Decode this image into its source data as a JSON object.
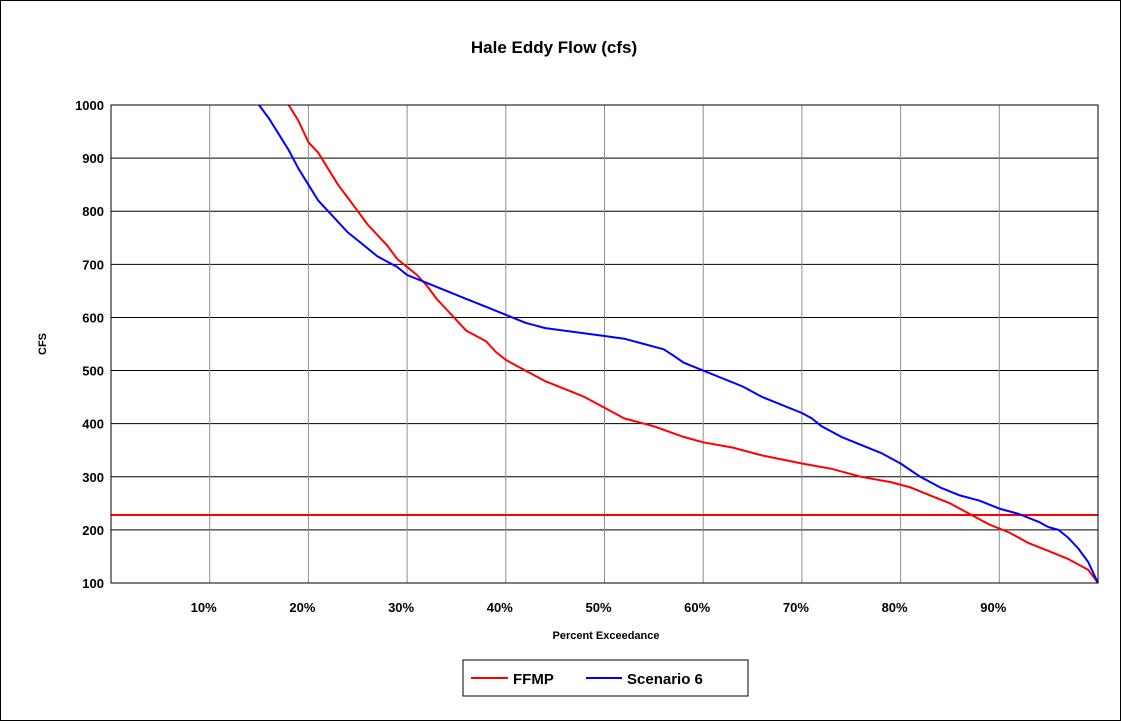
{
  "chart_data": {
    "type": "line",
    "title": "Hale Eddy Flow (cfs)",
    "xlabel": "Percent Exceedance",
    "ylabel": "CFS",
    "xlim": [
      0,
      100
    ],
    "ylim": [
      100,
      1000
    ],
    "x_ticks": [
      10,
      20,
      30,
      40,
      50,
      60,
      70,
      80,
      90
    ],
    "x_tick_labels": [
      "10%",
      "20%",
      "30%",
      "40%",
      "50%",
      "60%",
      "70%",
      "80%",
      "90%"
    ],
    "y_ticks": [
      100,
      200,
      300,
      400,
      500,
      600,
      700,
      800,
      900,
      1000
    ],
    "y_tick_labels": [
      "100",
      "200",
      "300",
      "400",
      "500",
      "600",
      "700",
      "800",
      "900",
      "1000"
    ],
    "grid": true,
    "legend_position": "bottom",
    "reference_line": {
      "y": 228,
      "color": "#ff0000"
    },
    "series": [
      {
        "name": "FFMP",
        "color": "#ff0000",
        "points": [
          [
            18,
            1000
          ],
          [
            19,
            970
          ],
          [
            20,
            930
          ],
          [
            21,
            910
          ],
          [
            22,
            880
          ],
          [
            23,
            850
          ],
          [
            24,
            825
          ],
          [
            25,
            800
          ],
          [
            26,
            775
          ],
          [
            27,
            755
          ],
          [
            28,
            735
          ],
          [
            29,
            710
          ],
          [
            30,
            695
          ],
          [
            31,
            680
          ],
          [
            32,
            660
          ],
          [
            33,
            635
          ],
          [
            34,
            615
          ],
          [
            35,
            595
          ],
          [
            36,
            575
          ],
          [
            38,
            555
          ],
          [
            39,
            535
          ],
          [
            40,
            520
          ],
          [
            42,
            500
          ],
          [
            44,
            480
          ],
          [
            46,
            465
          ],
          [
            48,
            450
          ],
          [
            50,
            430
          ],
          [
            52,
            410
          ],
          [
            55,
            395
          ],
          [
            58,
            375
          ],
          [
            60,
            365
          ],
          [
            63,
            355
          ],
          [
            66,
            340
          ],
          [
            70,
            325
          ],
          [
            73,
            315
          ],
          [
            76,
            300
          ],
          [
            79,
            290
          ],
          [
            81,
            280
          ],
          [
            83,
            265
          ],
          [
            85,
            250
          ],
          [
            87,
            230
          ],
          [
            89,
            210
          ],
          [
            91,
            195
          ],
          [
            93,
            175
          ],
          [
            95,
            160
          ],
          [
            97,
            145
          ],
          [
            99,
            125
          ],
          [
            100,
            100
          ]
        ]
      },
      {
        "name": "Scenario 6",
        "color": "#0000ff",
        "points": [
          [
            15,
            1000
          ],
          [
            16,
            975
          ],
          [
            17,
            945
          ],
          [
            18,
            915
          ],
          [
            19,
            880
          ],
          [
            20,
            850
          ],
          [
            21,
            820
          ],
          [
            22,
            800
          ],
          [
            23,
            780
          ],
          [
            24,
            760
          ],
          [
            25,
            745
          ],
          [
            26,
            730
          ],
          [
            27,
            715
          ],
          [
            28,
            705
          ],
          [
            29,
            695
          ],
          [
            30,
            680
          ],
          [
            32,
            665
          ],
          [
            34,
            650
          ],
          [
            36,
            635
          ],
          [
            38,
            620
          ],
          [
            40,
            605
          ],
          [
            42,
            590
          ],
          [
            44,
            580
          ],
          [
            46,
            575
          ],
          [
            48,
            570
          ],
          [
            50,
            565
          ],
          [
            52,
            560
          ],
          [
            54,
            550
          ],
          [
            56,
            540
          ],
          [
            57,
            528
          ],
          [
            58,
            515
          ],
          [
            60,
            500
          ],
          [
            62,
            485
          ],
          [
            64,
            470
          ],
          [
            66,
            450
          ],
          [
            68,
            435
          ],
          [
            70,
            420
          ],
          [
            71,
            410
          ],
          [
            72,
            395
          ],
          [
            74,
            375
          ],
          [
            76,
            360
          ],
          [
            78,
            345
          ],
          [
            80,
            325
          ],
          [
            82,
            300
          ],
          [
            84,
            280
          ],
          [
            86,
            265
          ],
          [
            88,
            255
          ],
          [
            90,
            240
          ],
          [
            92,
            230
          ],
          [
            94,
            215
          ],
          [
            95,
            205
          ],
          [
            96,
            200
          ],
          [
            97,
            185
          ],
          [
            98,
            165
          ],
          [
            99,
            140
          ],
          [
            100,
            100
          ]
        ]
      }
    ]
  }
}
